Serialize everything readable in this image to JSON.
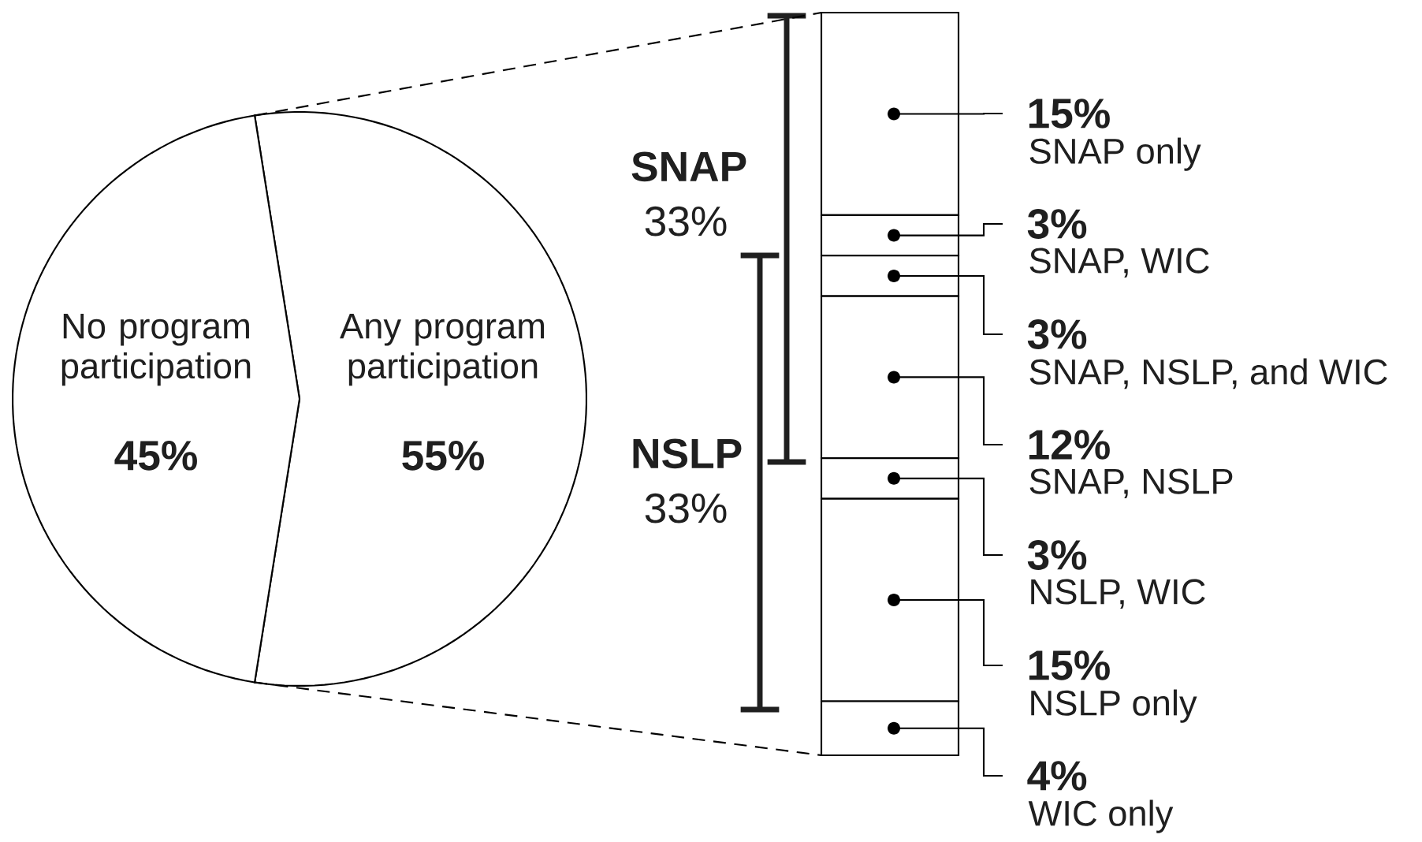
{
  "chart_data": [
    {
      "type": "pie",
      "categories": [
        "No program participation",
        "Any program participation"
      ],
      "values": [
        45,
        55
      ],
      "value_labels": [
        "45%",
        "55%"
      ],
      "colors": [
        "#ffffff",
        "#ffffff"
      ]
    },
    {
      "type": "bar",
      "stacked": true,
      "categories": [
        null
      ],
      "series": [
        {
          "name": "WIC only",
          "color": "#ffffff",
          "values": [
            4
          ],
          "value_labels": [
            "4%"
          ]
        },
        {
          "name": "NSLP only",
          "color": "#ffffff",
          "values": [
            15
          ],
          "value_labels": [
            "15%"
          ]
        },
        {
          "name": "NSLP, WIC",
          "color": "#ffffff",
          "values": [
            3
          ],
          "value_labels": [
            "3%"
          ]
        },
        {
          "name": "SNAP, NSLP",
          "color": "#ffffff",
          "values": [
            12
          ],
          "value_labels": [
            "12%"
          ]
        },
        {
          "name": "SNAP, NSLP, and WIC",
          "color": "#ffffff",
          "values": [
            3
          ],
          "value_labels": [
            "3%"
          ]
        },
        {
          "name": "SNAP, WIC",
          "color": "#ffffff",
          "values": [
            3
          ],
          "value_labels": [
            "3%"
          ]
        },
        {
          "name": "SNAP only",
          "color": "#ffffff",
          "values": [
            15
          ],
          "value_labels": [
            "15%"
          ]
        }
      ],
      "annotations": [
        "**SNAP** 33%",
        "**NSLP** 33%"
      ]
    }
  ]
}
